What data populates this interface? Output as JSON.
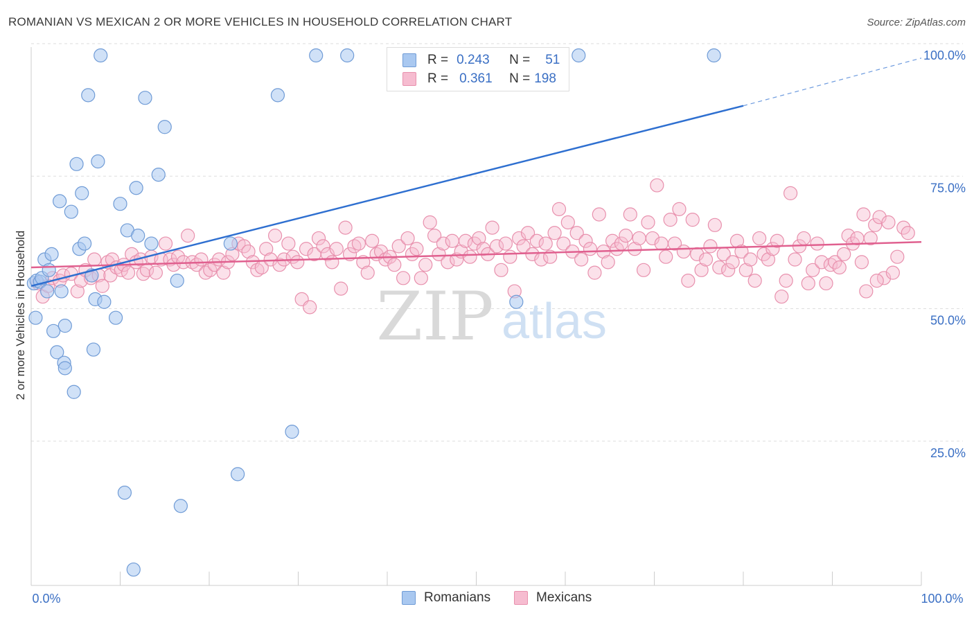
{
  "title": "ROMANIAN VS MEXICAN 2 OR MORE VEHICLES IN HOUSEHOLD CORRELATION CHART",
  "source": "Source: ZipAtlas.com",
  "watermark": {
    "zip": "ZIP",
    "atlas": "atlas"
  },
  "legend_top": {
    "rows": [
      {
        "r_label": "R =",
        "r_value": "0.243",
        "n_label": "N =",
        "n_value": "51"
      },
      {
        "r_label": "R =",
        "r_value": "0.361",
        "n_label": "N =",
        "n_value": "198"
      }
    ]
  },
  "legend_bottom": {
    "romanians": "Romanians",
    "mexicans": "Mexicans"
  },
  "colors": {
    "romanian_fill": "#a9c8f0",
    "romanian_stroke": "#6f9bd6",
    "romanian_line": "#2e6fd0",
    "mexican_fill": "#f6bcd0",
    "mexican_stroke": "#e890ad",
    "mexican_line": "#e0608f",
    "axis_text": "#3a6fc4",
    "grid": "#dddddd"
  },
  "chart_data": {
    "type": "scatter",
    "title": "ROMANIAN VS MEXICAN 2 OR MORE VEHICLES IN HOUSEHOLD CORRELATION CHART",
    "xlabel": "",
    "ylabel": "2 or more Vehicles in Household",
    "xlim": [
      0,
      100
    ],
    "ylim": [
      0,
      100
    ],
    "x_tick_labels": [
      "0.0%",
      "100.0%"
    ],
    "y_tick_labels": [
      "25.0%",
      "50.0%",
      "75.0%",
      "100.0%"
    ],
    "y_ticks": [
      25,
      50,
      75,
      100
    ],
    "grid": true,
    "series": [
      {
        "name": "Romanians",
        "R": 0.243,
        "N": 51,
        "trend": {
          "x0": 0,
          "y0": 56.5,
          "x1": 80,
          "y1": 90.5,
          "dashed_to_x": 100,
          "dashed_to_y": 99.5
        },
        "points": [
          [
            0.3,
            57.0
          ],
          [
            0.5,
            50.5
          ],
          [
            0.6,
            57.5
          ],
          [
            1.0,
            57.3
          ],
          [
            1.2,
            58.0
          ],
          [
            1.5,
            61.5
          ],
          [
            1.8,
            55.5
          ],
          [
            2.0,
            59.5
          ],
          [
            2.3,
            62.5
          ],
          [
            2.5,
            48.0
          ],
          [
            2.9,
            44.0
          ],
          [
            3.2,
            72.5
          ],
          [
            3.4,
            55.5
          ],
          [
            3.8,
            49.0
          ],
          [
            3.7,
            42.0
          ],
          [
            3.8,
            41.0
          ],
          [
            4.5,
            70.5
          ],
          [
            4.8,
            36.5
          ],
          [
            5.1,
            79.5
          ],
          [
            5.4,
            63.5
          ],
          [
            5.7,
            74.0
          ],
          [
            6.0,
            64.5
          ],
          [
            6.4,
            92.5
          ],
          [
            6.8,
            58.5
          ],
          [
            7.0,
            44.5
          ],
          [
            7.2,
            54.0
          ],
          [
            7.5,
            80.0
          ],
          [
            7.8,
            100.0
          ],
          [
            8.2,
            53.5
          ],
          [
            9.5,
            50.5
          ],
          [
            10.0,
            72.0
          ],
          [
            10.5,
            17.5
          ],
          [
            10.8,
            67.0
          ],
          [
            11.5,
            3.0
          ],
          [
            11.8,
            75.0
          ],
          [
            12.0,
            66.0
          ],
          [
            12.8,
            92.0
          ],
          [
            13.5,
            64.5
          ],
          [
            14.3,
            77.5
          ],
          [
            15.0,
            86.5
          ],
          [
            16.4,
            57.5
          ],
          [
            16.8,
            15.0
          ],
          [
            22.4,
            64.5
          ],
          [
            23.2,
            21.0
          ],
          [
            27.7,
            92.5
          ],
          [
            29.3,
            29.0
          ],
          [
            32.0,
            100.0
          ],
          [
            35.5,
            100.0
          ],
          [
            54.5,
            53.5
          ],
          [
            61.5,
            100.0
          ],
          [
            76.7,
            100.0
          ]
        ]
      },
      {
        "name": "Mexicans",
        "R": 0.361,
        "N": 198,
        "trend": {
          "x0": 0,
          "y0": 60.0,
          "x1": 100,
          "y1": 64.8
        },
        "points": [
          [
            0.8,
            57.0
          ],
          [
            1.3,
            54.5
          ],
          [
            1.9,
            56.5
          ],
          [
            2.4,
            58.0
          ],
          [
            3.2,
            57.5
          ],
          [
            3.6,
            58.5
          ],
          [
            4.5,
            58.8
          ],
          [
            5.2,
            55.5
          ],
          [
            5.6,
            57.5
          ],
          [
            6.1,
            59.5
          ],
          [
            6.7,
            58.0
          ],
          [
            7.1,
            61.5
          ],
          [
            7.6,
            58.5
          ],
          [
            8.0,
            56.5
          ],
          [
            8.6,
            61.0
          ],
          [
            8.9,
            58.5
          ],
          [
            9.1,
            61.5
          ],
          [
            9.6,
            60.0
          ],
          [
            10.1,
            59.5
          ],
          [
            10.4,
            60.5
          ],
          [
            10.9,
            59.0
          ],
          [
            11.3,
            62.5
          ],
          [
            11.8,
            61.0
          ],
          [
            12.3,
            61.5
          ],
          [
            12.6,
            58.8
          ],
          [
            13.0,
            59.5
          ],
          [
            13.5,
            62.0
          ],
          [
            14.0,
            59.0
          ],
          [
            14.6,
            61.5
          ],
          [
            15.1,
            64.5
          ],
          [
            15.6,
            61.5
          ],
          [
            16.0,
            60.5
          ],
          [
            16.5,
            62.0
          ],
          [
            17.1,
            61.0
          ],
          [
            17.6,
            66.0
          ],
          [
            18.1,
            61.0
          ],
          [
            18.6,
            60.5
          ],
          [
            19.1,
            61.5
          ],
          [
            19.6,
            59.0
          ],
          [
            20.1,
            59.5
          ],
          [
            20.6,
            60.5
          ],
          [
            21.1,
            61.5
          ],
          [
            21.6,
            59.0
          ],
          [
            22.1,
            61.0
          ],
          [
            22.6,
            62.5
          ],
          [
            23.3,
            64.5
          ],
          [
            23.9,
            64.0
          ],
          [
            24.4,
            63.0
          ],
          [
            24.9,
            61.0
          ],
          [
            25.4,
            59.5
          ],
          [
            25.9,
            60.0
          ],
          [
            26.4,
            63.5
          ],
          [
            26.9,
            61.5
          ],
          [
            27.4,
            66.0
          ],
          [
            27.9,
            60.5
          ],
          [
            28.4,
            61.5
          ],
          [
            28.9,
            64.5
          ],
          [
            29.4,
            62.0
          ],
          [
            29.9,
            61.0
          ],
          [
            30.4,
            54.0
          ],
          [
            30.9,
            63.5
          ],
          [
            31.3,
            52.5
          ],
          [
            31.8,
            62.5
          ],
          [
            32.3,
            65.5
          ],
          [
            32.8,
            64.0
          ],
          [
            33.3,
            62.5
          ],
          [
            33.8,
            61.0
          ],
          [
            34.3,
            63.5
          ],
          [
            34.8,
            56.0
          ],
          [
            35.3,
            67.5
          ],
          [
            35.8,
            62.5
          ],
          [
            36.3,
            64.0
          ],
          [
            36.8,
            64.5
          ],
          [
            37.3,
            61.0
          ],
          [
            37.8,
            59.0
          ],
          [
            38.3,
            65.0
          ],
          [
            38.8,
            62.5
          ],
          [
            39.3,
            63.0
          ],
          [
            39.8,
            61.5
          ],
          [
            40.3,
            62.0
          ],
          [
            40.8,
            60.5
          ],
          [
            41.3,
            64.0
          ],
          [
            41.8,
            58.0
          ],
          [
            42.3,
            65.5
          ],
          [
            42.8,
            62.5
          ],
          [
            43.3,
            63.5
          ],
          [
            43.8,
            58.0
          ],
          [
            44.3,
            60.5
          ],
          [
            44.8,
            68.5
          ],
          [
            45.3,
            66.0
          ],
          [
            45.8,
            62.5
          ],
          [
            46.3,
            64.5
          ],
          [
            46.8,
            61.0
          ],
          [
            47.3,
            65.0
          ],
          [
            47.8,
            61.5
          ],
          [
            48.3,
            63.0
          ],
          [
            48.8,
            65.0
          ],
          [
            49.3,
            62.0
          ],
          [
            49.8,
            64.5
          ],
          [
            50.3,
            65.5
          ],
          [
            50.8,
            63.5
          ],
          [
            51.3,
            62.5
          ],
          [
            51.8,
            67.5
          ],
          [
            52.3,
            64.0
          ],
          [
            52.8,
            59.5
          ],
          [
            53.3,
            64.5
          ],
          [
            53.8,
            62.0
          ],
          [
            54.3,
            55.5
          ],
          [
            54.8,
            65.5
          ],
          [
            55.3,
            64.0
          ],
          [
            55.8,
            66.5
          ],
          [
            56.3,
            62.5
          ],
          [
            56.8,
            65.0
          ],
          [
            57.3,
            61.5
          ],
          [
            57.8,
            64.5
          ],
          [
            58.3,
            62.0
          ],
          [
            58.8,
            66.5
          ],
          [
            59.3,
            71.0
          ],
          [
            59.8,
            64.5
          ],
          [
            60.3,
            68.5
          ],
          [
            60.8,
            63.0
          ],
          [
            61.3,
            66.5
          ],
          [
            61.8,
            61.5
          ],
          [
            62.3,
            65.0
          ],
          [
            62.8,
            63.5
          ],
          [
            63.3,
            59.0
          ],
          [
            63.8,
            70.0
          ],
          [
            64.3,
            63.0
          ],
          [
            64.8,
            61.0
          ],
          [
            65.3,
            65.0
          ],
          [
            65.8,
            63.5
          ],
          [
            66.3,
            64.5
          ],
          [
            66.8,
            66.0
          ],
          [
            67.3,
            70.0
          ],
          [
            67.8,
            63.5
          ],
          [
            68.3,
            65.5
          ],
          [
            68.8,
            59.5
          ],
          [
            69.3,
            68.5
          ],
          [
            69.8,
            65.5
          ],
          [
            70.3,
            75.5
          ],
          [
            70.8,
            64.5
          ],
          [
            71.3,
            62.0
          ],
          [
            71.8,
            69.0
          ],
          [
            72.3,
            64.5
          ],
          [
            72.8,
            71.0
          ],
          [
            73.3,
            63.0
          ],
          [
            73.8,
            57.5
          ],
          [
            74.3,
            69.0
          ],
          [
            74.8,
            62.5
          ],
          [
            75.3,
            59.5
          ],
          [
            75.8,
            61.5
          ],
          [
            76.3,
            64.0
          ],
          [
            76.8,
            68.0
          ],
          [
            77.3,
            60.0
          ],
          [
            77.8,
            62.5
          ],
          [
            78.3,
            59.5
          ],
          [
            78.8,
            61.0
          ],
          [
            79.3,
            65.0
          ],
          [
            79.8,
            63.0
          ],
          [
            80.3,
            59.5
          ],
          [
            80.8,
            61.5
          ],
          [
            81.3,
            57.5
          ],
          [
            81.8,
            65.5
          ],
          [
            82.3,
            62.5
          ],
          [
            82.8,
            61.5
          ],
          [
            83.3,
            63.5
          ],
          [
            83.8,
            65.0
          ],
          [
            84.3,
            54.5
          ],
          [
            84.8,
            57.5
          ],
          [
            85.3,
            74.0
          ],
          [
            85.8,
            61.5
          ],
          [
            86.3,
            64.0
          ],
          [
            86.8,
            65.5
          ],
          [
            87.3,
            57.0
          ],
          [
            87.8,
            59.5
          ],
          [
            88.3,
            64.5
          ],
          [
            88.8,
            61.0
          ],
          [
            89.3,
            57.0
          ],
          [
            89.8,
            60.5
          ],
          [
            90.3,
            61.0
          ],
          [
            90.8,
            60.0
          ],
          [
            91.3,
            62.5
          ],
          [
            91.8,
            66.0
          ],
          [
            92.3,
            64.5
          ],
          [
            92.8,
            65.5
          ],
          [
            93.3,
            61.0
          ],
          [
            93.8,
            55.5
          ],
          [
            94.3,
            65.5
          ],
          [
            94.8,
            68.0
          ],
          [
            95.3,
            69.5
          ],
          [
            95.8,
            58.0
          ],
          [
            96.3,
            68.5
          ],
          [
            96.8,
            59.0
          ],
          [
            97.3,
            62.0
          ],
          [
            98.0,
            67.5
          ],
          [
            98.5,
            66.5
          ],
          [
            93.5,
            70.0
          ],
          [
            95.0,
            57.5
          ]
        ]
      }
    ]
  }
}
